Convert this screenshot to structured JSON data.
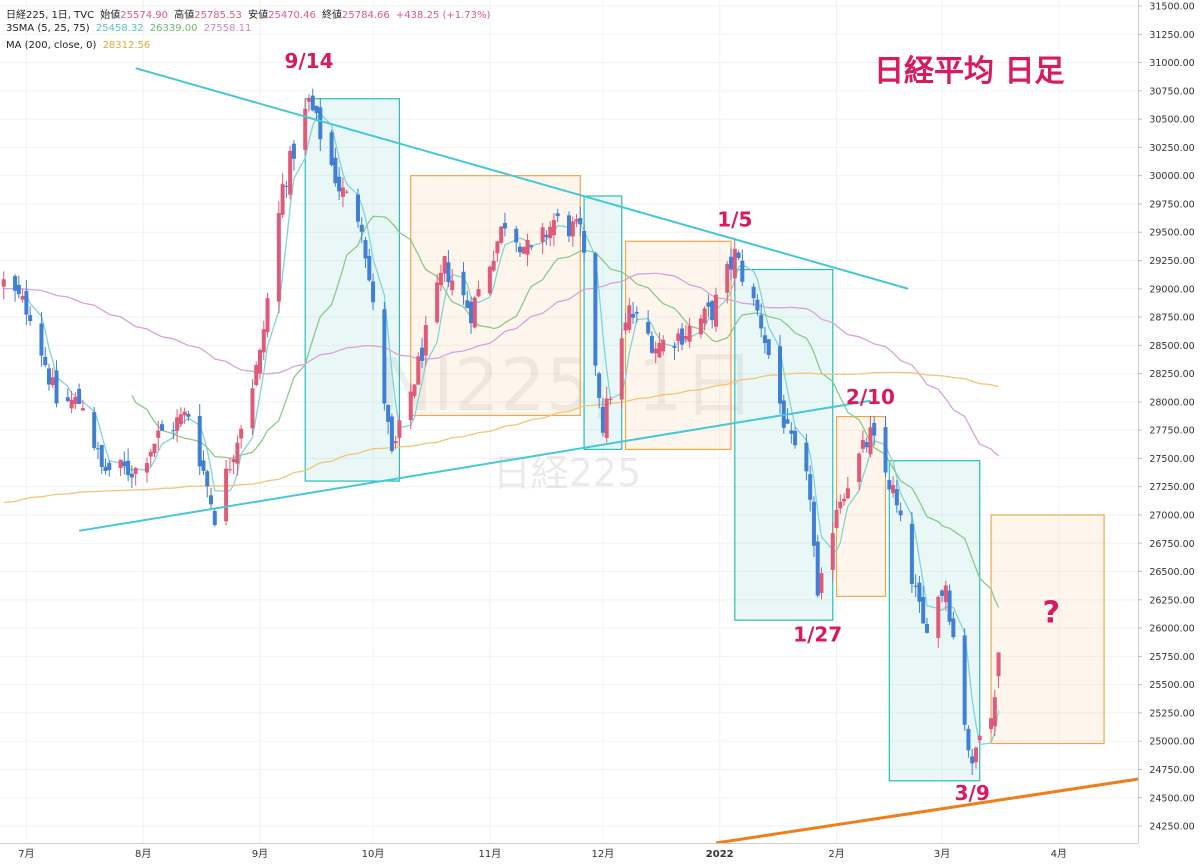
{
  "header": {
    "symbol": "日経225, 1日, TVC",
    "open_label": "始値",
    "open": "25574.90",
    "high_label": "高値",
    "high": "25785.53",
    "low_label": "安値",
    "low": "25470.46",
    "close_label": "終値",
    "close": "25784.66",
    "change": "+438.25 (+1.73%)",
    "sma_label": "3SMA (5, 25, 75)",
    "sma_values": [
      "25458.32",
      "26339.00",
      "27558.11"
    ],
    "ma_label": "MA (200, close, 0)",
    "ma_value": "28312.56"
  },
  "title": "日経平均 日足",
  "watermark": {
    "main": "NI225, 1日",
    "sub": "日経225"
  },
  "colors": {
    "up": "#e05a7a",
    "down": "#3f7fd6",
    "sma5": "#7fd6d6",
    "sma25": "#8cc98c",
    "sma75": "#d9a3d9",
    "ma200": "#f2c674",
    "trend": "#47c8d8",
    "orange": "#ef7f1a",
    "box_blue": "#2bbdb3",
    "box_orange": "#f0a64a",
    "annot": "#d81b60"
  },
  "chart_data": {
    "type": "candlestick",
    "y_axis": {
      "range": [
        24100,
        31500
      ],
      "ticks": [
        "31500.00",
        "31250.00",
        "31000.00",
        "30750.00",
        "30500.00",
        "30250.00",
        "30000.00",
        "29750.00",
        "29500.00",
        "29250.00",
        "29000.00",
        "28750.00",
        "28500.00",
        "28250.00",
        "28000.00",
        "27750.00",
        "27500.00",
        "27250.00",
        "27000.00",
        "26750.00",
        "26500.00",
        "26250.00",
        "26000.00",
        "25750.00",
        "25500.00",
        "25250.00",
        "25000.00",
        "24750.00",
        "24500.00",
        "24250.00"
      ]
    },
    "x_axis": {
      "labels": [
        {
          "label": "7月",
          "date": "2021-07-01"
        },
        {
          "label": "8月",
          "date": "2021-08-01"
        },
        {
          "label": "9月",
          "date": "2021-09-01"
        },
        {
          "label": "10月",
          "date": "2021-10-01"
        },
        {
          "label": "11月",
          "date": "2021-11-01"
        },
        {
          "label": "12月",
          "date": "2021-12-01"
        },
        {
          "label": "2022",
          "date": "2022-01-01"
        },
        {
          "label": "2月",
          "date": "2022-02-01"
        },
        {
          "label": "3月",
          "date": "2022-03-01"
        },
        {
          "label": "4月",
          "date": "2022-04-01"
        }
      ],
      "range": [
        "2021-06-24",
        "2022-04-22"
      ]
    },
    "close_anchors": [
      [
        "2021-06-25",
        29050
      ],
      [
        "2021-07-02",
        28800
      ],
      [
        "2021-07-09",
        28000
      ],
      [
        "2021-07-16",
        28000
      ],
      [
        "2021-07-21",
        27400
      ],
      [
        "2021-07-30",
        27400
      ],
      [
        "2021-08-05",
        27700
      ],
      [
        "2021-08-13",
        27900
      ],
      [
        "2021-08-20",
        27000
      ],
      [
        "2021-08-26",
        27700
      ],
      [
        "2021-09-01",
        28400
      ],
      [
        "2021-09-07",
        29900
      ],
      [
        "2021-09-14",
        30650
      ],
      [
        "2021-09-22",
        29900
      ],
      [
        "2021-09-28",
        29600
      ],
      [
        "2021-10-06",
        27500
      ],
      [
        "2021-10-12",
        28200
      ],
      [
        "2021-10-20",
        29200
      ],
      [
        "2021-10-27",
        28800
      ],
      [
        "2021-11-05",
        29600
      ],
      [
        "2021-11-12",
        29300
      ],
      [
        "2021-11-18",
        29600
      ],
      [
        "2021-11-25",
        29500
      ],
      [
        "2021-12-01",
        27800
      ],
      [
        "2021-12-08",
        28800
      ],
      [
        "2021-12-15",
        28500
      ],
      [
        "2021-12-22",
        28600
      ],
      [
        "2021-12-30",
        28800
      ],
      [
        "2022-01-05",
        29300
      ],
      [
        "2022-01-12",
        28700
      ],
      [
        "2022-01-19",
        27700
      ],
      [
        "2022-01-25",
        27200
      ],
      [
        "2022-01-27",
        26200
      ],
      [
        "2022-02-01",
        27100
      ],
      [
        "2022-02-10",
        27700
      ],
      [
        "2022-02-16",
        27200
      ],
      [
        "2022-02-24",
        26000
      ],
      [
        "2022-03-02",
        26400
      ],
      [
        "2022-03-09",
        24720
      ],
      [
        "2022-03-11",
        25150
      ],
      [
        "2022-03-15",
        25350
      ],
      [
        "2022-03-16",
        25760
      ]
    ],
    "series": [
      {
        "name": "3SMA (5, 25, 75)",
        "type": "line",
        "color": "#7fd6d6",
        "period": 5
      },
      {
        "name": "3SMA (5, 25, 75)",
        "type": "line",
        "color": "#8cc98c",
        "period": 25
      },
      {
        "name": "3SMA (5, 25, 75)",
        "type": "line",
        "color": "#d9a3d9",
        "period": 75
      },
      {
        "name": "MA (200, close, 0)",
        "type": "line",
        "color": "#f2c674",
        "period": 200
      }
    ],
    "trendlines": [
      {
        "color": "#47c8d8",
        "from": [
          "2021-07-30",
          30950
        ],
        "to": [
          "2022-02-20",
          29000
        ]
      },
      {
        "color": "#47c8d8",
        "from": [
          "2021-07-15",
          26860
        ],
        "to": [
          "2022-02-10",
          28010
        ]
      },
      {
        "color": "#ef7f1a",
        "from": [
          "2021-12-31",
          24100
        ],
        "to": [
          "2022-04-23",
          24670
        ]
      }
    ],
    "boxes": [
      {
        "color": "blue",
        "from": "2021-09-13",
        "to": "2021-10-08",
        "high": 30680,
        "low": 27300
      },
      {
        "color": "orange",
        "from": "2021-10-11",
        "to": "2021-11-25",
        "high": 30000,
        "low": 27880
      },
      {
        "color": "blue",
        "from": "2021-11-26",
        "to": "2021-12-06",
        "high": 29820,
        "low": 27580
      },
      {
        "color": "orange",
        "from": "2021-12-07",
        "to": "2022-01-04",
        "high": 29420,
        "low": 27580
      },
      {
        "color": "blue",
        "from": "2022-01-05",
        "to": "2022-01-31",
        "high": 29170,
        "low": 26070
      },
      {
        "color": "orange",
        "from": "2022-02-01",
        "to": "2022-02-14",
        "high": 27870,
        "low": 26280
      },
      {
        "color": "blue",
        "from": "2022-02-15",
        "to": "2022-03-11",
        "high": 27480,
        "low": 24650
      },
      {
        "color": "orange",
        "from": "2022-03-14",
        "to": "2022-04-13",
        "high": 27000,
        "low": 24980
      }
    ],
    "annotations": [
      {
        "text": "9/14",
        "date": "2021-09-14",
        "value": 30950
      },
      {
        "text": "1/5",
        "date": "2022-01-05",
        "value": 29550
      },
      {
        "text": "2/10",
        "date": "2022-02-10",
        "value": 27980
      },
      {
        "text": "1/27",
        "date": "2022-01-27",
        "value": 25880
      },
      {
        "text": "3/9",
        "date": "2022-03-09",
        "value": 24480
      },
      {
        "text": "?",
        "date": "2022-03-30",
        "value": 26050
      }
    ]
  }
}
